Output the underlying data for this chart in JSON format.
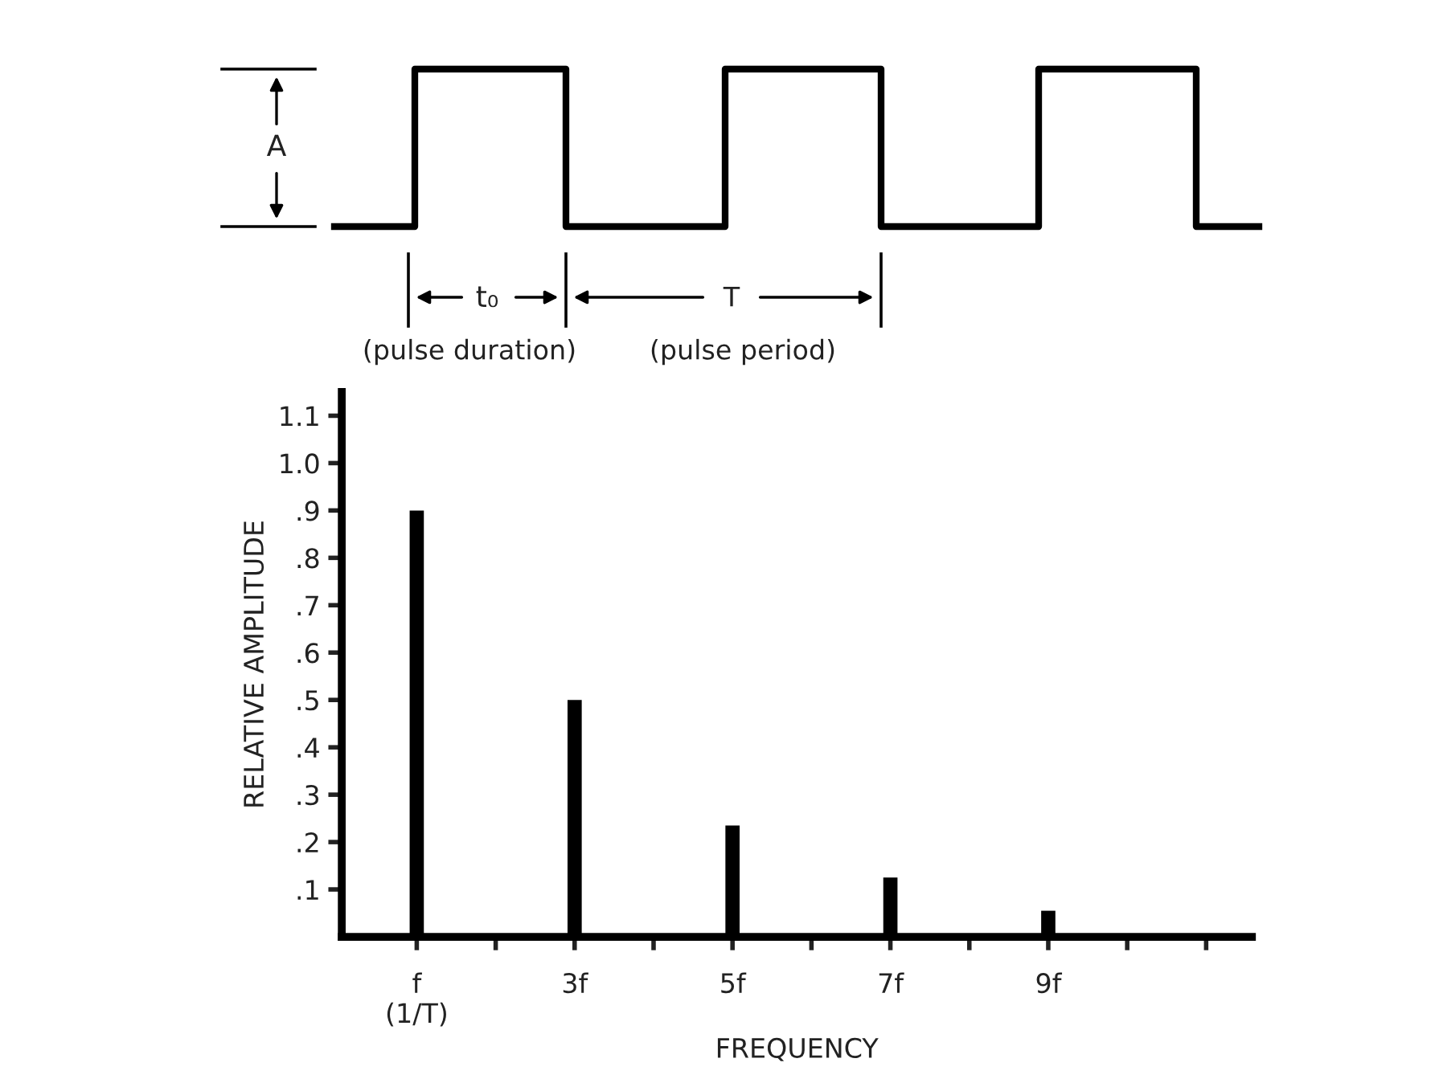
{
  "chart_data": {
    "type": "bar",
    "xlabel": "FREQUENCY",
    "ylabel": "RELATIVE AMPLITUDE",
    "categories": [
      "f\n(1/T)",
      null,
      "3f",
      null,
      "5f",
      null,
      "7f",
      null,
      "9f",
      null,
      null
    ],
    "values": [
      0.9,
      null,
      0.5,
      null,
      0.235,
      null,
      0.125,
      null,
      0.055,
      null,
      null
    ],
    "color": "#000000",
    "ylim": [
      0,
      1.15
    ],
    "yticks": [
      {
        "value": 0.1,
        "label": ".1"
      },
      {
        "value": 0.2,
        "label": ".2"
      },
      {
        "value": 0.3,
        "label": ".3"
      },
      {
        "value": 0.4,
        "label": ".4"
      },
      {
        "value": 0.5,
        "label": ".5"
      },
      {
        "value": 0.6,
        "label": ".6"
      },
      {
        "value": 0.7,
        "label": ".7"
      },
      {
        "value": 0.8,
        "label": ".8"
      },
      {
        "value": 0.9,
        "label": ".9"
      },
      {
        "value": 1.0,
        "label": "1.0"
      },
      {
        "value": 1.1,
        "label": "1.1"
      }
    ],
    "annotations": [
      "A",
      "t₀",
      "T",
      "(pulse duration)",
      "(pulse period)"
    ]
  }
}
